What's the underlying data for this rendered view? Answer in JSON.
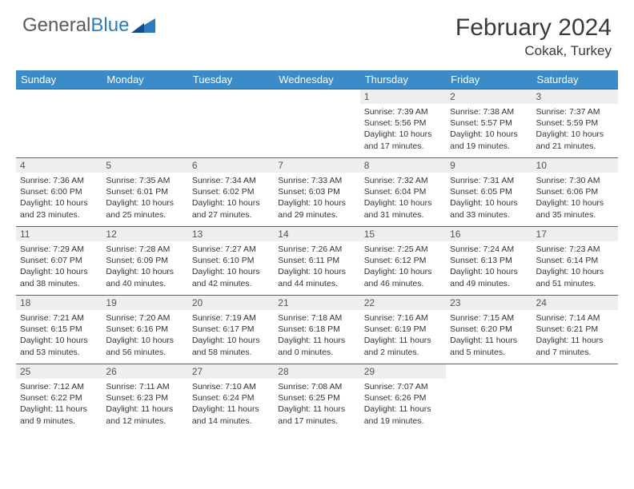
{
  "brand": {
    "name_part1": "General",
    "name_part2": "Blue",
    "accent_color": "#2b7bbf"
  },
  "header": {
    "month_title": "February 2024",
    "location": "Cokak, Turkey"
  },
  "weekdays": [
    "Sunday",
    "Monday",
    "Tuesday",
    "Wednesday",
    "Thursday",
    "Friday",
    "Saturday"
  ],
  "colors": {
    "header_band": "#3b8bc9",
    "daynum_bg": "#eceef0",
    "cell_border": "#3b6a8f",
    "text": "#333333"
  },
  "layout": {
    "columns": 7,
    "rows": 5,
    "start_weekday_index": 4,
    "days_in_month": 29
  },
  "days": [
    {
      "n": 1,
      "sunrise": "7:39 AM",
      "sunset": "5:56 PM",
      "daylight": "10 hours and 17 minutes."
    },
    {
      "n": 2,
      "sunrise": "7:38 AM",
      "sunset": "5:57 PM",
      "daylight": "10 hours and 19 minutes."
    },
    {
      "n": 3,
      "sunrise": "7:37 AM",
      "sunset": "5:59 PM",
      "daylight": "10 hours and 21 minutes."
    },
    {
      "n": 4,
      "sunrise": "7:36 AM",
      "sunset": "6:00 PM",
      "daylight": "10 hours and 23 minutes."
    },
    {
      "n": 5,
      "sunrise": "7:35 AM",
      "sunset": "6:01 PM",
      "daylight": "10 hours and 25 minutes."
    },
    {
      "n": 6,
      "sunrise": "7:34 AM",
      "sunset": "6:02 PM",
      "daylight": "10 hours and 27 minutes."
    },
    {
      "n": 7,
      "sunrise": "7:33 AM",
      "sunset": "6:03 PM",
      "daylight": "10 hours and 29 minutes."
    },
    {
      "n": 8,
      "sunrise": "7:32 AM",
      "sunset": "6:04 PM",
      "daylight": "10 hours and 31 minutes."
    },
    {
      "n": 9,
      "sunrise": "7:31 AM",
      "sunset": "6:05 PM",
      "daylight": "10 hours and 33 minutes."
    },
    {
      "n": 10,
      "sunrise": "7:30 AM",
      "sunset": "6:06 PM",
      "daylight": "10 hours and 35 minutes."
    },
    {
      "n": 11,
      "sunrise": "7:29 AM",
      "sunset": "6:07 PM",
      "daylight": "10 hours and 38 minutes."
    },
    {
      "n": 12,
      "sunrise": "7:28 AM",
      "sunset": "6:09 PM",
      "daylight": "10 hours and 40 minutes."
    },
    {
      "n": 13,
      "sunrise": "7:27 AM",
      "sunset": "6:10 PM",
      "daylight": "10 hours and 42 minutes."
    },
    {
      "n": 14,
      "sunrise": "7:26 AM",
      "sunset": "6:11 PM",
      "daylight": "10 hours and 44 minutes."
    },
    {
      "n": 15,
      "sunrise": "7:25 AM",
      "sunset": "6:12 PM",
      "daylight": "10 hours and 46 minutes."
    },
    {
      "n": 16,
      "sunrise": "7:24 AM",
      "sunset": "6:13 PM",
      "daylight": "10 hours and 49 minutes."
    },
    {
      "n": 17,
      "sunrise": "7:23 AM",
      "sunset": "6:14 PM",
      "daylight": "10 hours and 51 minutes."
    },
    {
      "n": 18,
      "sunrise": "7:21 AM",
      "sunset": "6:15 PM",
      "daylight": "10 hours and 53 minutes."
    },
    {
      "n": 19,
      "sunrise": "7:20 AM",
      "sunset": "6:16 PM",
      "daylight": "10 hours and 56 minutes."
    },
    {
      "n": 20,
      "sunrise": "7:19 AM",
      "sunset": "6:17 PM",
      "daylight": "10 hours and 58 minutes."
    },
    {
      "n": 21,
      "sunrise": "7:18 AM",
      "sunset": "6:18 PM",
      "daylight": "11 hours and 0 minutes."
    },
    {
      "n": 22,
      "sunrise": "7:16 AM",
      "sunset": "6:19 PM",
      "daylight": "11 hours and 2 minutes."
    },
    {
      "n": 23,
      "sunrise": "7:15 AM",
      "sunset": "6:20 PM",
      "daylight": "11 hours and 5 minutes."
    },
    {
      "n": 24,
      "sunrise": "7:14 AM",
      "sunset": "6:21 PM",
      "daylight": "11 hours and 7 minutes."
    },
    {
      "n": 25,
      "sunrise": "7:12 AM",
      "sunset": "6:22 PM",
      "daylight": "11 hours and 9 minutes."
    },
    {
      "n": 26,
      "sunrise": "7:11 AM",
      "sunset": "6:23 PM",
      "daylight": "11 hours and 12 minutes."
    },
    {
      "n": 27,
      "sunrise": "7:10 AM",
      "sunset": "6:24 PM",
      "daylight": "11 hours and 14 minutes."
    },
    {
      "n": 28,
      "sunrise": "7:08 AM",
      "sunset": "6:25 PM",
      "daylight": "11 hours and 17 minutes."
    },
    {
      "n": 29,
      "sunrise": "7:07 AM",
      "sunset": "6:26 PM",
      "daylight": "11 hours and 19 minutes."
    }
  ],
  "labels": {
    "sunrise": "Sunrise:",
    "sunset": "Sunset:",
    "daylight": "Daylight:"
  }
}
